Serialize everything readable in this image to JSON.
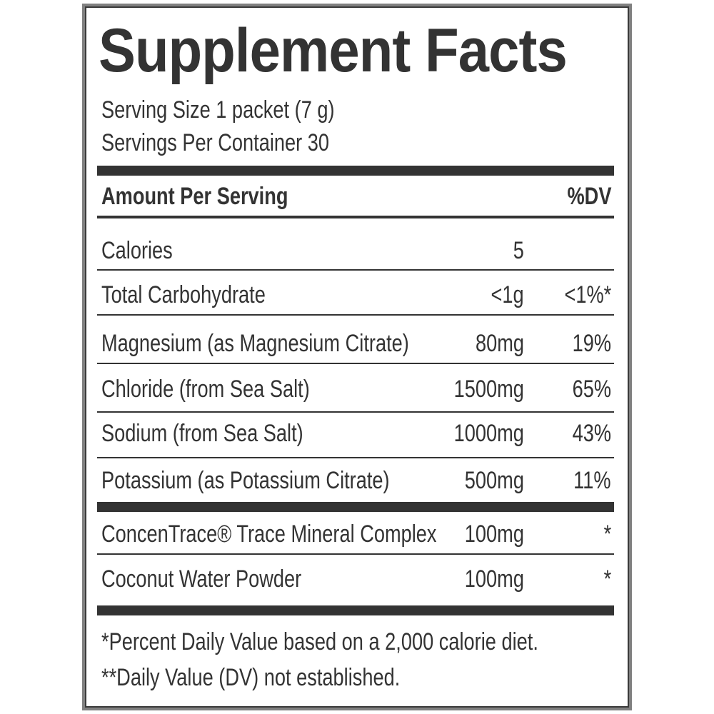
{
  "title": "Supplement Facts",
  "serving_size": "Serving Size 1 packet (7 g)",
  "servings_per_container": "Servings Per Container 30",
  "header": {
    "amount": "Amount Per Serving",
    "dv": "%DV"
  },
  "rows": [
    {
      "name": "Calories",
      "amount": "5",
      "dv": ""
    },
    {
      "name": "Total Carbohydrate",
      "amount": "<1g",
      "dv": "<1%*"
    },
    {
      "name": "Magnesium (as Magnesium Citrate)",
      "amount": "80mg",
      "dv": "19%"
    },
    {
      "name": "Chloride (from Sea Salt)",
      "amount": "1500mg",
      "dv": "65%"
    },
    {
      "name": "Sodium (from Sea Salt)",
      "amount": "1000mg",
      "dv": "43%"
    },
    {
      "name": "Potassium (as Potassium Citrate)",
      "amount": "500mg",
      "dv": "11%"
    }
  ],
  "other_rows": [
    {
      "name": "ConcenTrace® Trace Mineral Complex",
      "amount": "100mg",
      "dv": "*"
    },
    {
      "name": "Coconut Water Powder",
      "amount": "100mg",
      "dv": "*"
    }
  ],
  "footnotes": [
    "*Percent Daily Value based on a 2,000 calorie diet.",
    "**Daily Value (DV) not established."
  ],
  "colors": {
    "text": "#333333",
    "border": "#808080"
  }
}
